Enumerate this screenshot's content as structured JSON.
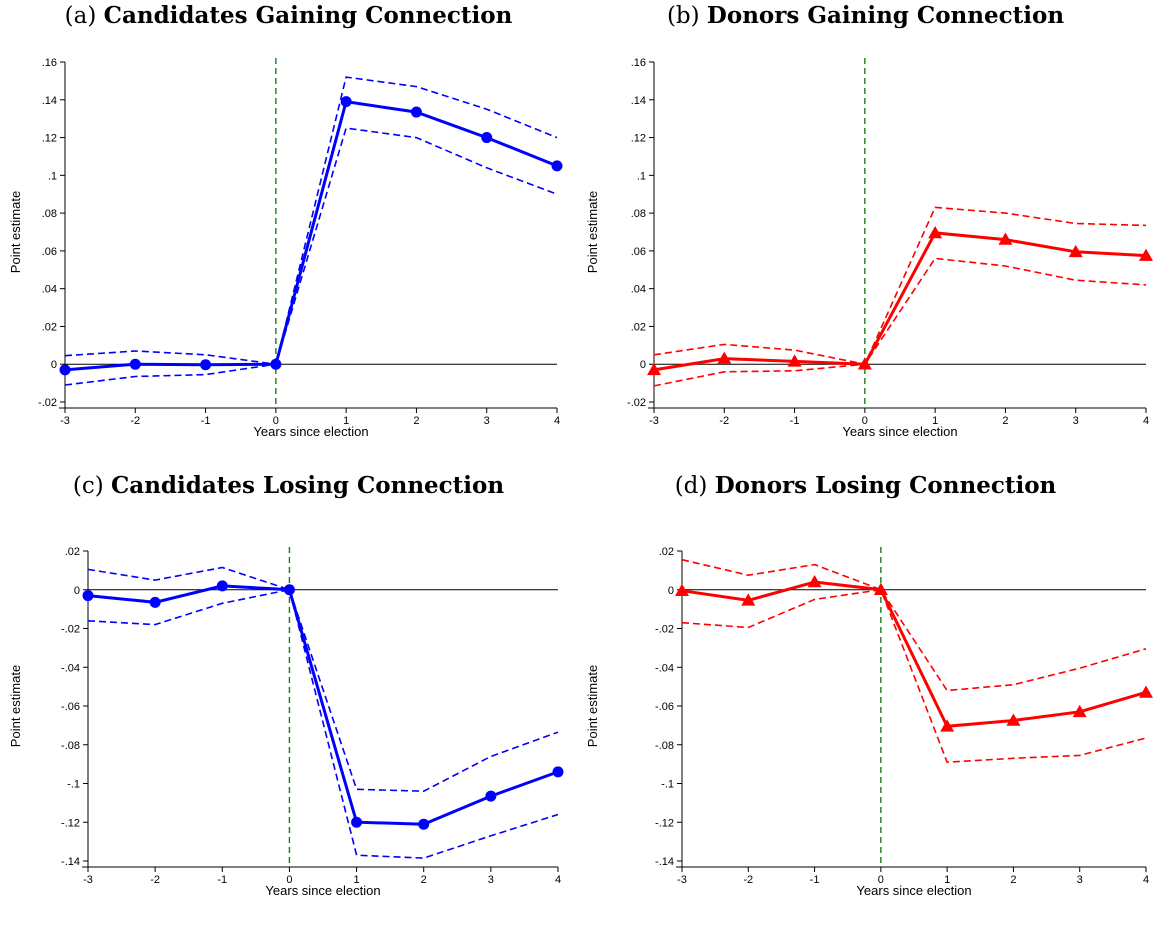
{
  "chart_data": [
    {
      "type": "line",
      "panel_tag": "(a)",
      "title": "Candidates Gaining Connection",
      "xlabel": "Years since election",
      "ylabel": "Point estimate",
      "x": [
        -3,
        -2,
        -1,
        0,
        1,
        2,
        3,
        4
      ],
      "xticks": [
        "-3",
        "-2",
        "-1",
        "0",
        "1",
        "2",
        "3",
        "4"
      ],
      "ylim": [
        -0.02,
        0.16
      ],
      "yticks": [
        -0.02,
        0,
        0.02,
        0.04,
        0.06,
        0.08,
        0.1,
        0.12,
        0.14,
        0.16
      ],
      "ytick_labels": [
        "-.02",
        "0",
        ".02",
        ".04",
        ".06",
        ".08",
        ".1",
        ".12",
        ".14",
        ".16"
      ],
      "estimate": [
        -0.003,
        0.0,
        -0.0003,
        0.0,
        0.139,
        0.1335,
        0.12,
        0.105
      ],
      "upper": [
        0.0045,
        0.007,
        0.005,
        0.0,
        0.152,
        0.147,
        0.135,
        0.12
      ],
      "lower": [
        -0.011,
        -0.0065,
        -0.0055,
        0.0,
        0.125,
        0.12,
        0.104,
        0.09
      ],
      "color": "#0000ff",
      "marker": "circle",
      "vline_x": 0,
      "vline_color": "#1a7a1a"
    },
    {
      "type": "line",
      "panel_tag": "(b)",
      "title": "Donors Gaining Connection",
      "xlabel": "Years since election",
      "ylabel": "Point estimate",
      "x": [
        -3,
        -2,
        -1,
        0,
        1,
        2,
        3,
        4
      ],
      "xticks": [
        "-3",
        "-2",
        "-1",
        "0",
        "1",
        "2",
        "3",
        "4"
      ],
      "ylim": [
        -0.02,
        0.16
      ],
      "yticks": [
        -0.02,
        0,
        0.02,
        0.04,
        0.06,
        0.08,
        0.1,
        0.12,
        0.14,
        0.16
      ],
      "ytick_labels": [
        "-.02",
        "0",
        ".02",
        ".04",
        ".06",
        ".08",
        ".1",
        ".12",
        ".14",
        ".16"
      ],
      "estimate": [
        -0.003,
        0.003,
        0.0015,
        0.0,
        0.0695,
        0.066,
        0.0595,
        0.0575
      ],
      "upper": [
        0.005,
        0.0105,
        0.0075,
        0.0,
        0.083,
        0.08,
        0.0745,
        0.0735
      ],
      "lower": [
        -0.0115,
        -0.004,
        -0.0035,
        0.0,
        0.056,
        0.052,
        0.0445,
        0.042
      ],
      "color": "#ff0000",
      "marker": "triangle",
      "vline_x": 0,
      "vline_color": "#1a7a1a"
    },
    {
      "type": "line",
      "panel_tag": "(c)",
      "title": "Candidates Losing Connection",
      "xlabel": "Years since election",
      "ylabel": "Point estimate",
      "x": [
        -3,
        -2,
        -1,
        0,
        1,
        2,
        3,
        4
      ],
      "xticks": [
        "-3",
        "-2",
        "-1",
        "0",
        "1",
        "2",
        "3",
        "4"
      ],
      "ylim": [
        -0.14,
        0.02
      ],
      "yticks": [
        -0.14,
        -0.12,
        -0.1,
        -0.08,
        -0.06,
        -0.04,
        -0.02,
        0,
        0.02
      ],
      "ytick_labels": [
        "-.14",
        "-.12",
        "-.1",
        "-.08",
        "-.06",
        "-.04",
        "-.02",
        "0",
        ".02"
      ],
      "estimate": [
        -0.003,
        -0.0065,
        0.002,
        0.0,
        -0.12,
        -0.121,
        -0.1065,
        -0.094
      ],
      "upper": [
        0.0105,
        0.005,
        0.0115,
        0.0,
        -0.103,
        -0.104,
        -0.086,
        -0.0735
      ],
      "lower": [
        -0.016,
        -0.018,
        -0.007,
        0.0,
        -0.137,
        -0.1385,
        -0.127,
        -0.116
      ],
      "color": "#0000ff",
      "marker": "circle",
      "vline_x": 0,
      "vline_color": "#1a7a1a"
    },
    {
      "type": "line",
      "panel_tag": "(d)",
      "title": "Donors Losing Connection",
      "xlabel": "Years since election",
      "ylabel": "Point estimate",
      "x": [
        -3,
        -2,
        -1,
        0,
        1,
        2,
        3,
        4
      ],
      "xticks": [
        "-3",
        "-2",
        "-1",
        "0",
        "1",
        "2",
        "3",
        "4"
      ],
      "ylim": [
        -0.14,
        0.02
      ],
      "yticks": [
        -0.14,
        -0.12,
        -0.1,
        -0.08,
        -0.06,
        -0.04,
        -0.02,
        0,
        0.02
      ],
      "ytick_labels": [
        "-.14",
        "-.12",
        "-.1",
        "-.08",
        "-.06",
        "-.04",
        "-.02",
        "0",
        ".02"
      ],
      "estimate": [
        -0.0005,
        -0.0055,
        0.004,
        0.0,
        -0.0705,
        -0.0675,
        -0.063,
        -0.053
      ],
      "upper": [
        0.0155,
        0.0075,
        0.013,
        0.0,
        -0.052,
        -0.049,
        -0.0405,
        -0.0305
      ],
      "lower": [
        -0.017,
        -0.0195,
        -0.005,
        0.0,
        -0.089,
        -0.087,
        -0.0855,
        -0.0765
      ],
      "color": "#ff0000",
      "marker": "triangle",
      "vline_x": 0,
      "vline_color": "#1a7a1a"
    }
  ]
}
